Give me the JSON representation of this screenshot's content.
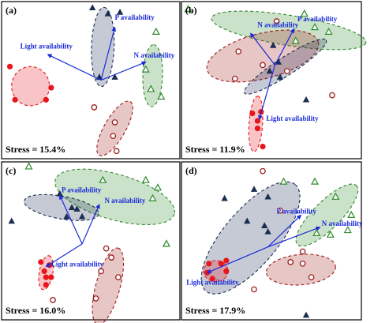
{
  "colors": {
    "arrow": "#1a2ad8",
    "red_fill": "#e8151b",
    "dark_red": "#9e1c1c",
    "navy": "#1b2d52",
    "green": "#2f8a2b"
  },
  "chart_data": [
    {
      "type": "scatter",
      "panel": "(a)",
      "stress": "Stress = 15.4%",
      "xlim": [
        0,
        10
      ],
      "ylim": [
        0,
        10
      ],
      "series": [
        {
          "marker": "filled-circle",
          "color": "#e8151b",
          "points": [
            [
              0.3,
              5.9
            ],
            [
              0.6,
              3.7
            ],
            [
              2.4,
              3.7
            ],
            [
              2.7,
              4.5
            ]
          ]
        },
        {
          "marker": "open-circle",
          "color": "#9e1c1c",
          "points": [
            [
              5.2,
              3.2
            ],
            [
              6.4,
              2.2
            ],
            [
              6.3,
              1.3
            ],
            [
              6.5,
              0.3
            ]
          ]
        },
        {
          "marker": "filled-triangle",
          "color": "#1b2d52",
          "points": [
            [
              5.1,
              9.8
            ],
            [
              6.0,
              9.4
            ],
            [
              6.7,
              9.5
            ],
            [
              5.5,
              5.2
            ],
            [
              6.4,
              5.2
            ]
          ]
        },
        {
          "marker": "open-triangle",
          "color": "#2f8a2b",
          "points": [
            [
              8.8,
              8.2
            ],
            [
              8.2,
              5.7
            ],
            [
              8.5,
              4.4
            ],
            [
              9.1,
              3.9
            ]
          ]
        }
      ],
      "ellipses": [
        {
          "color": "#e8151b",
          "style": "filled",
          "cx": 1.5,
          "cy": 4.6,
          "rx": 1.1,
          "ry": 1.3,
          "angle": 0
        },
        {
          "color": "#9e1c1c",
          "style": "filled",
          "cx": 6.4,
          "cy": 1.8,
          "rx": 1.8,
          "ry": 0.7,
          "angle": -60
        },
        {
          "color": "#1b2d52",
          "style": "filled",
          "cx": 5.7,
          "cy": 7.2,
          "rx": 2.3,
          "ry": 0.75,
          "angle": -88
        },
        {
          "color": "#2f8a2b",
          "style": "filled",
          "cx": 8.6,
          "cy": 5.3,
          "rx": 1.8,
          "ry": 0.65,
          "angle": -88
        }
      ],
      "vectors_origin": [
        5.6,
        5.0
      ],
      "vectors": [
        {
          "label": "Light availability",
          "end": [
            2.5,
            6.7
          ],
          "label_pos": [
            0.9,
            7.1
          ]
        },
        {
          "label": "P availability",
          "end": [
            6.4,
            8.5
          ],
          "label_pos": [
            6.4,
            9.0
          ]
        },
        {
          "label": "N availability",
          "end": [
            8.2,
            6.2
          ],
          "label_pos": [
            7.5,
            6.5
          ]
        }
      ]
    },
    {
      "type": "scatter",
      "panel": "(b)",
      "stress": "Stress = 11.9%",
      "xlim": [
        0,
        10
      ],
      "ylim": [
        0,
        10
      ],
      "series": [
        {
          "marker": "filled-circle",
          "color": "#e8151b",
          "points": [
            [
              3.9,
              2.8
            ],
            [
              4.4,
              2.9
            ],
            [
              4.2,
              2.3
            ],
            [
              4.2,
              1.8
            ],
            [
              4.5,
              0.6
            ]
          ]
        },
        {
          "marker": "open-circle",
          "color": "#9e1c1c",
          "points": [
            [
              5.3,
              8.9
            ],
            [
              3.1,
              6.9
            ],
            [
              4.5,
              6.0
            ],
            [
              2.9,
              5.1
            ],
            [
              5.9,
              5.6
            ],
            [
              8.5,
              4.0
            ]
          ]
        },
        {
          "marker": "filled-triangle",
          "color": "#1b2d52",
          "points": [
            [
              5.1,
              7.3
            ],
            [
              5.4,
              6.2
            ],
            [
              4.9,
              5.6
            ],
            [
              5.5,
              5.2
            ],
            [
              7.0,
              3.7
            ]
          ]
        },
        {
          "marker": "open-triangle",
          "color": "#2f8a2b",
          "points": [
            [
              0.2,
              9.7
            ],
            [
              6.9,
              9.4
            ],
            [
              7.5,
              8.5
            ],
            [
              8.3,
              8.2
            ],
            [
              6.4,
              7.6
            ]
          ]
        }
      ],
      "ellipses": [
        {
          "color": "#2f8a2b",
          "style": "filled",
          "cx": 6.0,
          "cy": 8.3,
          "rx": 4.5,
          "ry": 1.0,
          "angle": 9
        },
        {
          "color": "#9e1c1c",
          "style": "filled",
          "cx": 4.5,
          "cy": 6.6,
          "rx": 3.3,
          "ry": 1.5,
          "angle": -14
        },
        {
          "color": "#1b2d52",
          "style": "filled",
          "cx": 5.8,
          "cy": 5.9,
          "rx": 2.8,
          "ry": 0.6,
          "angle": -33
        },
        {
          "color": "#e8151b",
          "style": "filled",
          "cx": 4.1,
          "cy": 2.1,
          "rx": 1.6,
          "ry": 0.45,
          "angle": -86
        }
      ],
      "vectors_origin": [
        5.2,
        6.0
      ],
      "vectors": [
        {
          "label": "Light availability",
          "end": [
            4.3,
            2.4
          ],
          "label_pos": [
            4.7,
            2.3
          ]
        },
        {
          "label": "N availability",
          "end": [
            3.8,
            8.1
          ],
          "label_pos": [
            4.2,
            8.5
          ]
        },
        {
          "label": "P availability",
          "end": [
            6.3,
            8.4
          ],
          "label_pos": [
            6.5,
            8.9
          ]
        }
      ]
    },
    {
      "type": "scatter",
      "panel": "(c)",
      "stress": "Stress = 16.0%",
      "xlim": [
        0,
        10
      ],
      "ylim": [
        0,
        10
      ],
      "series": [
        {
          "marker": "filled-circle",
          "color": "#e8151b",
          "points": [
            [
              2.1,
              3.6
            ],
            [
              2.6,
              3.4
            ],
            [
              2.3,
              3.0
            ],
            [
              2.4,
              2.6
            ],
            [
              2.7,
              2.6
            ],
            [
              2.4,
              2.1
            ]
          ]
        },
        {
          "marker": "open-circle",
          "color": "#9e1c1c",
          "points": [
            [
              2.8,
              1.1
            ],
            [
              5.9,
              4.5
            ],
            [
              6.2,
              3.9
            ],
            [
              5.6,
              3.0
            ],
            [
              6.6,
              2.6
            ],
            [
              5.3,
              1.2
            ]
          ]
        },
        {
          "marker": "filled-triangle",
          "color": "#1b2d52",
          "points": [
            [
              3.2,
              8.1
            ],
            [
              3.9,
              7.2
            ],
            [
              3.6,
              6.6
            ],
            [
              4.2,
              7.1
            ],
            [
              4.5,
              6.6
            ],
            [
              0.4,
              6.3
            ]
          ]
        },
        {
          "marker": "open-triangle",
          "color": "#2f8a2b",
          "points": [
            [
              1.4,
              9.9
            ],
            [
              5.7,
              9.0
            ],
            [
              8.2,
              9.0
            ],
            [
              8.9,
              8.5
            ],
            [
              8.6,
              7.8
            ],
            [
              9.4,
              4.8
            ]
          ]
        }
      ],
      "ellipses": [
        {
          "color": "#2f8a2b",
          "style": "filled",
          "cx": 6.4,
          "cy": 7.9,
          "rx": 3.6,
          "ry": 1.5,
          "angle": 16
        },
        {
          "color": "#1b2d52",
          "style": "filled",
          "cx": 3.3,
          "cy": 7.2,
          "rx": 2.2,
          "ry": 0.75,
          "angle": 10
        },
        {
          "color": "#e8151b",
          "style": "filled",
          "cx": 2.4,
          "cy": 2.9,
          "rx": 1.0,
          "ry": 0.45,
          "angle": -80
        },
        {
          "color": "#9e1c1c",
          "style": "filled",
          "cx": 6.0,
          "cy": 2.0,
          "rx": 2.3,
          "ry": 0.8,
          "angle": -75
        }
      ],
      "vectors_origin": [
        4.5,
        4.8
      ],
      "vectors": [
        {
          "label": "Light availability",
          "end": [
            2.4,
            3.3
          ],
          "label_pos": [
            2.7,
            3.3
          ]
        },
        {
          "label": "P availability",
          "end": [
            3.2,
            8.0
          ],
          "label_pos": [
            3.3,
            8.2
          ]
        },
        {
          "label": "N availability",
          "end": [
            5.5,
            7.4
          ],
          "label_pos": [
            5.8,
            7.5
          ]
        }
      ]
    },
    {
      "type": "scatter",
      "panel": "(d)",
      "stress": "Stress = 17.9%",
      "xlim": [
        0,
        10
      ],
      "ylim": [
        0,
        10
      ],
      "series": [
        {
          "marker": "filled-circle",
          "color": "#e8151b",
          "points": [
            [
              1.4,
              3.5
            ],
            [
              2.1,
              3.5
            ],
            [
              2.4,
              3.7
            ],
            [
              1.3,
              2.9
            ],
            [
              2.4,
              3.0
            ],
            [
              1.6,
              2.5
            ]
          ]
        },
        {
          "marker": "open-circle",
          "color": "#9e1c1c",
          "points": [
            [
              4.5,
              9.6
            ],
            [
              5.5,
              7.0
            ],
            [
              6.8,
              4.3
            ],
            [
              6.8,
              3.5
            ],
            [
              6.1,
              3.6
            ],
            [
              7.3,
              2.6
            ],
            [
              4.0,
              1.8
            ]
          ]
        },
        {
          "marker": "filled-triangle",
          "color": "#1b2d52",
          "points": [
            [
              2.3,
              7.8
            ],
            [
              4.0,
              8.4
            ],
            [
              4.8,
              7.9
            ],
            [
              3.6,
              6.3
            ],
            [
              4.6,
              6.0
            ],
            [
              4.8,
              5.6
            ],
            [
              7.0,
              0.1
            ]
          ]
        },
        {
          "marker": "open-triangle",
          "color": "#2f8a2b",
          "points": [
            [
              5.7,
              8.9
            ],
            [
              7.5,
              8.9
            ],
            [
              8.7,
              7.9
            ],
            [
              9.6,
              6.7
            ],
            [
              7.6,
              5.5
            ],
            [
              8.4,
              5.4
            ],
            [
              9.4,
              5.7
            ]
          ]
        }
      ],
      "ellipses": [
        {
          "color": "#1b2d52",
          "style": "filled",
          "cx": 3.8,
          "cy": 5.2,
          "rx": 4.0,
          "ry": 1.8,
          "angle": -50
        },
        {
          "color": "#2f8a2b",
          "style": "filled",
          "cx": 8.2,
          "cy": 6.7,
          "rx": 2.4,
          "ry": 0.9,
          "angle": -45
        },
        {
          "color": "#9e1c1c",
          "style": "filled",
          "cx": 6.7,
          "cy": 3.1,
          "rx": 2.0,
          "ry": 1.0,
          "angle": -5
        },
        {
          "color": "#e8151b",
          "style": "filled",
          "cx": 1.8,
          "cy": 3.0,
          "rx": 0.7,
          "ry": 0.7,
          "angle": 0
        }
      ],
      "vectors_origin": [
        4.8,
        4.6
      ],
      "vectors": [
        {
          "label": "Light availability",
          "end": [
            1.3,
            2.9
          ],
          "label_pos": [
            0.1,
            2.1
          ]
        },
        {
          "label": "P availability",
          "end": [
            6.7,
            6.7
          ],
          "label_pos": [
            5.3,
            6.8
          ]
        },
        {
          "label": "N availability",
          "end": [
            7.8,
            5.9
          ],
          "label_pos": [
            7.9,
            6.0
          ]
        }
      ]
    }
  ]
}
